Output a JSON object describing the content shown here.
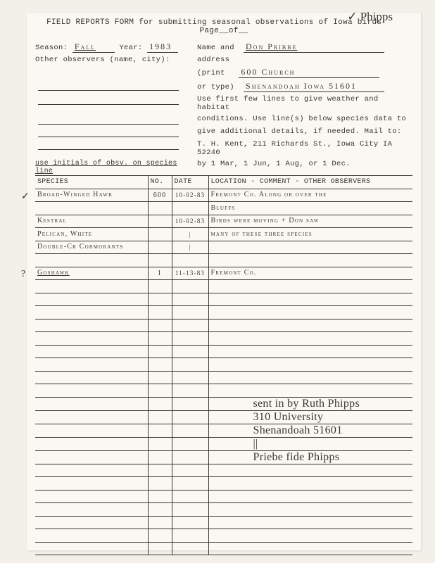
{
  "corner_note": "✓ Phipps",
  "title": "FIELD REPORTS FORM for submitting seasonal observations of Iowa birds",
  "page_label": "Page__of__",
  "labels": {
    "season": "Season:",
    "year": "Year:",
    "name": "Name and",
    "address": "address",
    "print": "(print",
    "ortype": "or type)",
    "other": "Other observers (name, city):"
  },
  "fields": {
    "season": "Fall",
    "year": "1983",
    "name": "Don Pribbe",
    "street": "600 Church",
    "city": "Shenandoah Iowa 51601"
  },
  "instructions": [
    "Use first few lines to give weather and habitat",
    "conditions. Use line(s) below species data to",
    "give additional details, if needed. Mail to:",
    "T. H. Kent, 211 Richards St., Iowa City IA 52240",
    "by 1 Mar, 1 Jun, 1 Aug, or 1 Dec."
  ],
  "hint": "use initials of obsv. on species line",
  "columns": {
    "species": "SPECIES",
    "no": "NO.",
    "date": "DATE",
    "loc": "LOCATION - COMMENT - OTHER OBSERVERS"
  },
  "rows": [
    {
      "mark": "✓",
      "species": "Broad-Winged Hawk",
      "no": "600",
      "date": "10-02-83",
      "loc": "Fremont Co. Along or over the"
    },
    {
      "species": "",
      "no": "",
      "date": "",
      "loc": "Bluffs"
    },
    {
      "species": "Kestral",
      "no": "",
      "date": "10-02-83",
      "loc": "Birds were moving + Don saw"
    },
    {
      "species": "Pelican, White",
      "no": "",
      "date": "|",
      "loc": "many of these three species"
    },
    {
      "species": "Double-Cr Cormorants",
      "no": "",
      "date": "|",
      "loc": ""
    },
    {
      "species": "",
      "no": "",
      "date": "",
      "loc": ""
    },
    {
      "mark": "?",
      "species": "Goshawk",
      "underline": true,
      "no": "1",
      "date": "11-13-83",
      "loc": "Fremont Co."
    },
    {
      "species": "",
      "no": "",
      "date": "",
      "loc": ""
    },
    {
      "species": "",
      "no": "",
      "date": "",
      "loc": ""
    },
    {
      "species": "",
      "no": "",
      "date": "",
      "loc": ""
    },
    {
      "species": "",
      "no": "",
      "date": "",
      "loc": ""
    },
    {
      "species": "",
      "no": "",
      "date": "",
      "loc": ""
    },
    {
      "species": "",
      "no": "",
      "date": "",
      "loc": ""
    },
    {
      "species": "",
      "no": "",
      "date": "",
      "loc": ""
    },
    {
      "species": "",
      "no": "",
      "date": "",
      "loc": ""
    },
    {
      "species": "",
      "no": "",
      "date": "",
      "loc": ""
    },
    {
      "species": "",
      "no": "",
      "date": "",
      "loc": "",
      "note": "sent in by Ruth Phipps",
      "cursive": true
    },
    {
      "species": "",
      "no": "",
      "date": "",
      "loc": "",
      "note": "310 University",
      "cursive": true
    },
    {
      "species": "",
      "no": "",
      "date": "",
      "loc": "",
      "note": "Shenandoah  51601",
      "cursive": true
    },
    {
      "species": "",
      "no": "",
      "date": "",
      "loc": "",
      "note": "||",
      "cursive": true
    },
    {
      "species": "",
      "no": "",
      "date": "",
      "loc": "",
      "note": "Priebe fide Phipps",
      "cursive": true
    },
    {
      "species": "",
      "no": "",
      "date": "",
      "loc": ""
    },
    {
      "species": "",
      "no": "",
      "date": "",
      "loc": ""
    },
    {
      "species": "",
      "no": "",
      "date": "",
      "loc": ""
    },
    {
      "species": "",
      "no": "",
      "date": "",
      "loc": ""
    },
    {
      "species": "",
      "no": "",
      "date": "",
      "loc": ""
    },
    {
      "species": "",
      "no": "",
      "date": "",
      "loc": ""
    },
    {
      "species": "",
      "no": "",
      "date": "",
      "loc": ""
    }
  ]
}
